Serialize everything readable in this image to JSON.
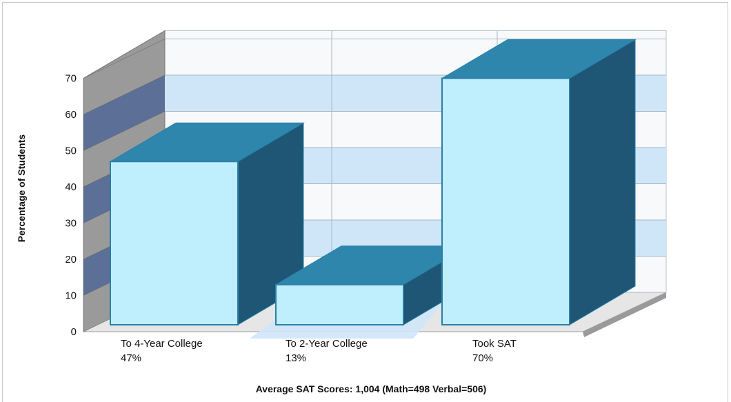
{
  "chart_data": {
    "type": "bar",
    "categories": [
      "To 4-Year College",
      "To 2-Year College",
      "Took SAT"
    ],
    "values": [
      47,
      13,
      70
    ],
    "value_labels": [
      "47%",
      "13%",
      "70%"
    ],
    "title": "",
    "xlabel": "",
    "ylabel": "Percentage of Students",
    "ylim": [
      0,
      70
    ],
    "yticks": [
      0,
      10,
      20,
      30,
      40,
      50,
      60,
      70
    ],
    "footer": "Average SAT Scores: 1,004 (Math=498 Verbal=506)",
    "style": "3d",
    "grid": true,
    "colors": {
      "bar_front": "#bfeefc",
      "bar_top": "#2f86ad",
      "bar_side": "#1f5675",
      "bar_edge": "#2a7fa6",
      "back_wall_band": "#cfe6f9",
      "back_wall": "#f7f9fb",
      "left_wall": "#9a9a9a",
      "left_wall_band": "#5b6f97",
      "floor": "#e6e6e6"
    }
  }
}
